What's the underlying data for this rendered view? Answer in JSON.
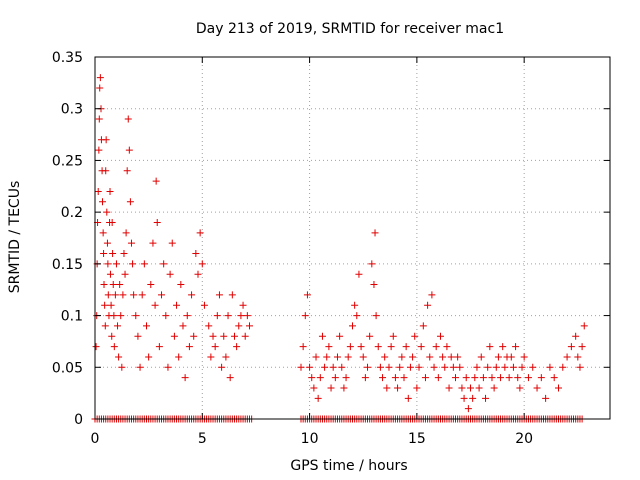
{
  "chart_data": {
    "type": "scatter",
    "title": "Day 213 of 2019, SRMTID for receiver mac1",
    "xlabel": "GPS time / hours",
    "ylabel": "SRMTID / TECUs",
    "xlim": [
      0,
      24
    ],
    "ylim": [
      0,
      0.35
    ],
    "xticks": [
      0,
      5,
      10,
      15,
      20
    ],
    "xtick_labels": [
      "0",
      "5",
      "10",
      "15",
      "20"
    ],
    "yticks": [
      0,
      0.05,
      0.1,
      0.15,
      0.2,
      0.25,
      0.3,
      0.35
    ],
    "ytick_labels": [
      "0",
      "0.05",
      "0.1",
      "0.15",
      "0.2",
      "0.25",
      "0.3",
      "0.35"
    ],
    "grid": true,
    "marker": "+",
    "series": [
      {
        "name": "SRMTID",
        "color": "#e00000",
        "points": [
          [
            0.05,
            0.07
          ],
          [
            0.08,
            0.1
          ],
          [
            0.1,
            0.15
          ],
          [
            0.12,
            0.19
          ],
          [
            0.15,
            0.22
          ],
          [
            0.18,
            0.26
          ],
          [
            0.2,
            0.29
          ],
          [
            0.22,
            0.32
          ],
          [
            0.25,
            0.33
          ],
          [
            0.28,
            0.3
          ],
          [
            0.3,
            0.27
          ],
          [
            0.33,
            0.24
          ],
          [
            0.35,
            0.21
          ],
          [
            0.38,
            0.18
          ],
          [
            0.4,
            0.16
          ],
          [
            0.42,
            0.13
          ],
          [
            0.45,
            0.11
          ],
          [
            0.48,
            0.09
          ],
          [
            0.5,
            0.24
          ],
          [
            0.52,
            0.27
          ],
          [
            0.55,
            0.2
          ],
          [
            0.58,
            0.17
          ],
          [
            0.6,
            0.15
          ],
          [
            0.62,
            0.12
          ],
          [
            0.65,
            0.1
          ],
          [
            0.68,
            0.19
          ],
          [
            0.7,
            0.22
          ],
          [
            0.72,
            0.14
          ],
          [
            0.75,
            0.11
          ],
          [
            0.78,
            0.08
          ],
          [
            0.8,
            0.19
          ],
          [
            0.82,
            0.16
          ],
          [
            0.85,
            0.13
          ],
          [
            0.88,
            0.1
          ],
          [
            0.9,
            0.07
          ],
          [
            0.95,
            0.12
          ],
          [
            1.0,
            0.15
          ],
          [
            1.05,
            0.09
          ],
          [
            1.1,
            0.06
          ],
          [
            1.15,
            0.13
          ],
          [
            1.2,
            0.1
          ],
          [
            1.25,
            0.05
          ],
          [
            1.3,
            0.12
          ],
          [
            1.35,
            0.16
          ],
          [
            1.4,
            0.14
          ],
          [
            1.45,
            0.18
          ],
          [
            1.5,
            0.24
          ],
          [
            1.55,
            0.29
          ],
          [
            1.6,
            0.26
          ],
          [
            1.65,
            0.21
          ],
          [
            1.7,
            0.17
          ],
          [
            1.75,
            0.15
          ],
          [
            1.8,
            0.12
          ],
          [
            1.9,
            0.1
          ],
          [
            2.0,
            0.08
          ],
          [
            2.1,
            0.05
          ],
          [
            2.2,
            0.12
          ],
          [
            2.3,
            0.15
          ],
          [
            2.4,
            0.09
          ],
          [
            2.5,
            0.06
          ],
          [
            2.6,
            0.13
          ],
          [
            2.7,
            0.17
          ],
          [
            2.8,
            0.11
          ],
          [
            2.85,
            0.23
          ],
          [
            2.9,
            0.19
          ],
          [
            3.0,
            0.07
          ],
          [
            3.1,
            0.12
          ],
          [
            3.2,
            0.15
          ],
          [
            3.3,
            0.1
          ],
          [
            3.4,
            0.05
          ],
          [
            3.5,
            0.14
          ],
          [
            3.6,
            0.17
          ],
          [
            3.7,
            0.08
          ],
          [
            3.8,
            0.11
          ],
          [
            3.9,
            0.06
          ],
          [
            4.0,
            0.13
          ],
          [
            4.1,
            0.09
          ],
          [
            4.2,
            0.04
          ],
          [
            4.3,
            0.1
          ],
          [
            4.4,
            0.07
          ],
          [
            4.5,
            0.12
          ],
          [
            4.6,
            0.08
          ],
          [
            4.7,
            0.16
          ],
          [
            4.8,
            0.14
          ],
          [
            4.9,
            0.18
          ],
          [
            5.0,
            0.15
          ],
          [
            5.1,
            0.11
          ],
          [
            5.3,
            0.09
          ],
          [
            5.4,
            0.06
          ],
          [
            5.5,
            0.08
          ],
          [
            5.6,
            0.07
          ],
          [
            5.7,
            0.1
          ],
          [
            5.8,
            0.12
          ],
          [
            5.9,
            0.05
          ],
          [
            6.0,
            0.08
          ],
          [
            6.1,
            0.06
          ],
          [
            6.2,
            0.1
          ],
          [
            6.3,
            0.04
          ],
          [
            6.4,
            0.12
          ],
          [
            6.5,
            0.08
          ],
          [
            6.6,
            0.07
          ],
          [
            6.7,
            0.09
          ],
          [
            6.8,
            0.1
          ],
          [
            6.9,
            0.11
          ],
          [
            7.0,
            0.08
          ],
          [
            7.1,
            0.1
          ],
          [
            7.2,
            0.09
          ],
          [
            9.6,
            0.05
          ],
          [
            9.7,
            0.07
          ],
          [
            9.8,
            0.1
          ],
          [
            9.9,
            0.12
          ],
          [
            10.0,
            0.05
          ],
          [
            10.1,
            0.04
          ],
          [
            10.2,
            0.03
          ],
          [
            10.3,
            0.06
          ],
          [
            10.4,
            0.02
          ],
          [
            10.5,
            0.04
          ],
          [
            10.6,
            0.08
          ],
          [
            10.7,
            0.05
          ],
          [
            10.8,
            0.06
          ],
          [
            10.9,
            0.07
          ],
          [
            11.0,
            0.03
          ],
          [
            11.1,
            0.05
          ],
          [
            11.2,
            0.04
          ],
          [
            11.3,
            0.06
          ],
          [
            11.4,
            0.08
          ],
          [
            11.5,
            0.05
          ],
          [
            11.6,
            0.03
          ],
          [
            11.7,
            0.04
          ],
          [
            11.8,
            0.06
          ],
          [
            11.9,
            0.07
          ],
          [
            12.0,
            0.09
          ],
          [
            12.1,
            0.11
          ],
          [
            12.2,
            0.1
          ],
          [
            12.3,
            0.14
          ],
          [
            12.4,
            0.07
          ],
          [
            12.5,
            0.06
          ],
          [
            12.6,
            0.04
          ],
          [
            12.7,
            0.05
          ],
          [
            12.8,
            0.08
          ],
          [
            12.9,
            0.15
          ],
          [
            13.0,
            0.13
          ],
          [
            13.05,
            0.18
          ],
          [
            13.1,
            0.1
          ],
          [
            13.2,
            0.07
          ],
          [
            13.3,
            0.05
          ],
          [
            13.4,
            0.04
          ],
          [
            13.5,
            0.06
          ],
          [
            13.6,
            0.03
          ],
          [
            13.7,
            0.05
          ],
          [
            13.8,
            0.07
          ],
          [
            13.9,
            0.08
          ],
          [
            14.0,
            0.04
          ],
          [
            14.1,
            0.03
          ],
          [
            14.2,
            0.05
          ],
          [
            14.3,
            0.06
          ],
          [
            14.4,
            0.04
          ],
          [
            14.5,
            0.07
          ],
          [
            14.6,
            0.02
          ],
          [
            14.7,
            0.05
          ],
          [
            14.8,
            0.06
          ],
          [
            14.9,
            0.08
          ],
          [
            15.0,
            0.03
          ],
          [
            15.1,
            0.05
          ],
          [
            15.2,
            0.07
          ],
          [
            15.3,
            0.09
          ],
          [
            15.4,
            0.04
          ],
          [
            15.5,
            0.11
          ],
          [
            15.6,
            0.06
          ],
          [
            15.7,
            0.12
          ],
          [
            15.8,
            0.05
          ],
          [
            15.9,
            0.07
          ],
          [
            16.0,
            0.04
          ],
          [
            16.1,
            0.08
          ],
          [
            16.2,
            0.06
          ],
          [
            16.3,
            0.05
          ],
          [
            16.4,
            0.07
          ],
          [
            16.5,
            0.03
          ],
          [
            16.6,
            0.06
          ],
          [
            16.7,
            0.05
          ],
          [
            16.8,
            0.04
          ],
          [
            16.9,
            0.06
          ],
          [
            17.0,
            0.05
          ],
          [
            17.1,
            0.03
          ],
          [
            17.2,
            0.02
          ],
          [
            17.3,
            0.04
          ],
          [
            17.4,
            0.01
          ],
          [
            17.5,
            0.03
          ],
          [
            17.6,
            0.02
          ],
          [
            17.7,
            0.04
          ],
          [
            17.8,
            0.05
          ],
          [
            17.9,
            0.03
          ],
          [
            18.0,
            0.06
          ],
          [
            18.1,
            0.04
          ],
          [
            18.2,
            0.02
          ],
          [
            18.3,
            0.05
          ],
          [
            18.4,
            0.07
          ],
          [
            18.5,
            0.04
          ],
          [
            18.6,
            0.03
          ],
          [
            18.7,
            0.05
          ],
          [
            18.8,
            0.06
          ],
          [
            18.9,
            0.04
          ],
          [
            19.0,
            0.07
          ],
          [
            19.1,
            0.05
          ],
          [
            19.2,
            0.06
          ],
          [
            19.3,
            0.04
          ],
          [
            19.4,
            0.06
          ],
          [
            19.5,
            0.05
          ],
          [
            19.6,
            0.07
          ],
          [
            19.7,
            0.04
          ],
          [
            19.8,
            0.03
          ],
          [
            19.9,
            0.05
          ],
          [
            20.0,
            0.06
          ],
          [
            20.2,
            0.04
          ],
          [
            20.4,
            0.05
          ],
          [
            20.6,
            0.03
          ],
          [
            20.8,
            0.04
          ],
          [
            21.0,
            0.02
          ],
          [
            21.2,
            0.05
          ],
          [
            21.4,
            0.04
          ],
          [
            21.6,
            0.03
          ],
          [
            21.8,
            0.05
          ],
          [
            22.0,
            0.06
          ],
          [
            22.2,
            0.07
          ],
          [
            22.4,
            0.08
          ],
          [
            22.5,
            0.06
          ],
          [
            22.6,
            0.05
          ],
          [
            22.7,
            0.07
          ],
          [
            22.8,
            0.09
          ]
        ]
      }
    ],
    "zero_markers": {
      "ranges": [
        [
          0.0,
          7.3
        ],
        [
          9.6,
          22.7
        ]
      ],
      "y": 0
    }
  }
}
